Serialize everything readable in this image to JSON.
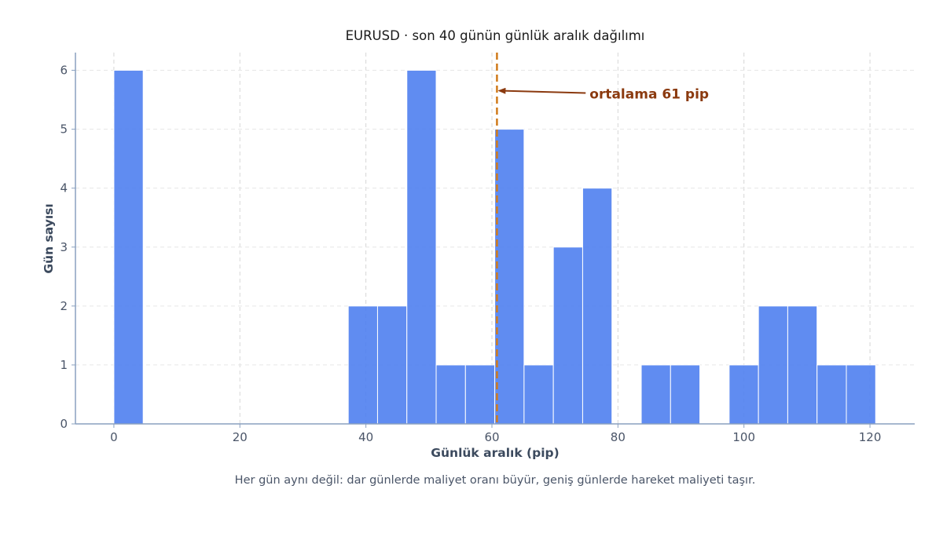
{
  "chart_data": {
    "type": "bar",
    "title": "EURUSD · son 40 günün günlük aralık dağılımı",
    "xlabel": "Günlük aralık (pip)",
    "ylabel": "Gün sayısı",
    "caption": "Her gün aynı değil: dar günlerde maliyet oranı büyür, geniş günlerde hareket maliyeti taşır.",
    "xlim": [
      -6.1,
      127.1
    ],
    "ylim": [
      0,
      6.3
    ],
    "xticks": [
      0,
      20,
      40,
      60,
      80,
      100,
      120
    ],
    "yticks": [
      0,
      1,
      2,
      3,
      4,
      5,
      6
    ],
    "grid": true,
    "bin_width": 4.65,
    "bins": [
      {
        "start": 0.0,
        "count": 6
      },
      {
        "start": 37.2,
        "count": 2
      },
      {
        "start": 41.85,
        "count": 2
      },
      {
        "start": 46.5,
        "count": 6
      },
      {
        "start": 51.15,
        "count": 1
      },
      {
        "start": 55.8,
        "count": 1
      },
      {
        "start": 60.45,
        "count": 5
      },
      {
        "start": 65.1,
        "count": 1
      },
      {
        "start": 69.75,
        "count": 3
      },
      {
        "start": 74.4,
        "count": 4
      },
      {
        "start": 83.7,
        "count": 1
      },
      {
        "start": 88.35,
        "count": 1
      },
      {
        "start": 97.65,
        "count": 1
      },
      {
        "start": 102.3,
        "count": 2
      },
      {
        "start": 106.95,
        "count": 2
      },
      {
        "start": 111.6,
        "count": 1
      },
      {
        "start": 116.25,
        "count": 1
      }
    ],
    "mean": 60.8,
    "mean_label": "ortalama 61 pip",
    "mean_label_at": {
      "x": 75.5,
      "y": 5.6
    },
    "colors": {
      "bar": "#4f7ff0",
      "bar_edge": "#ffffff",
      "mean_line": "#d07a1a",
      "annotation": "#8b3a0f",
      "axis": "#8aa0bf",
      "grid": "#d6d6d6"
    }
  }
}
